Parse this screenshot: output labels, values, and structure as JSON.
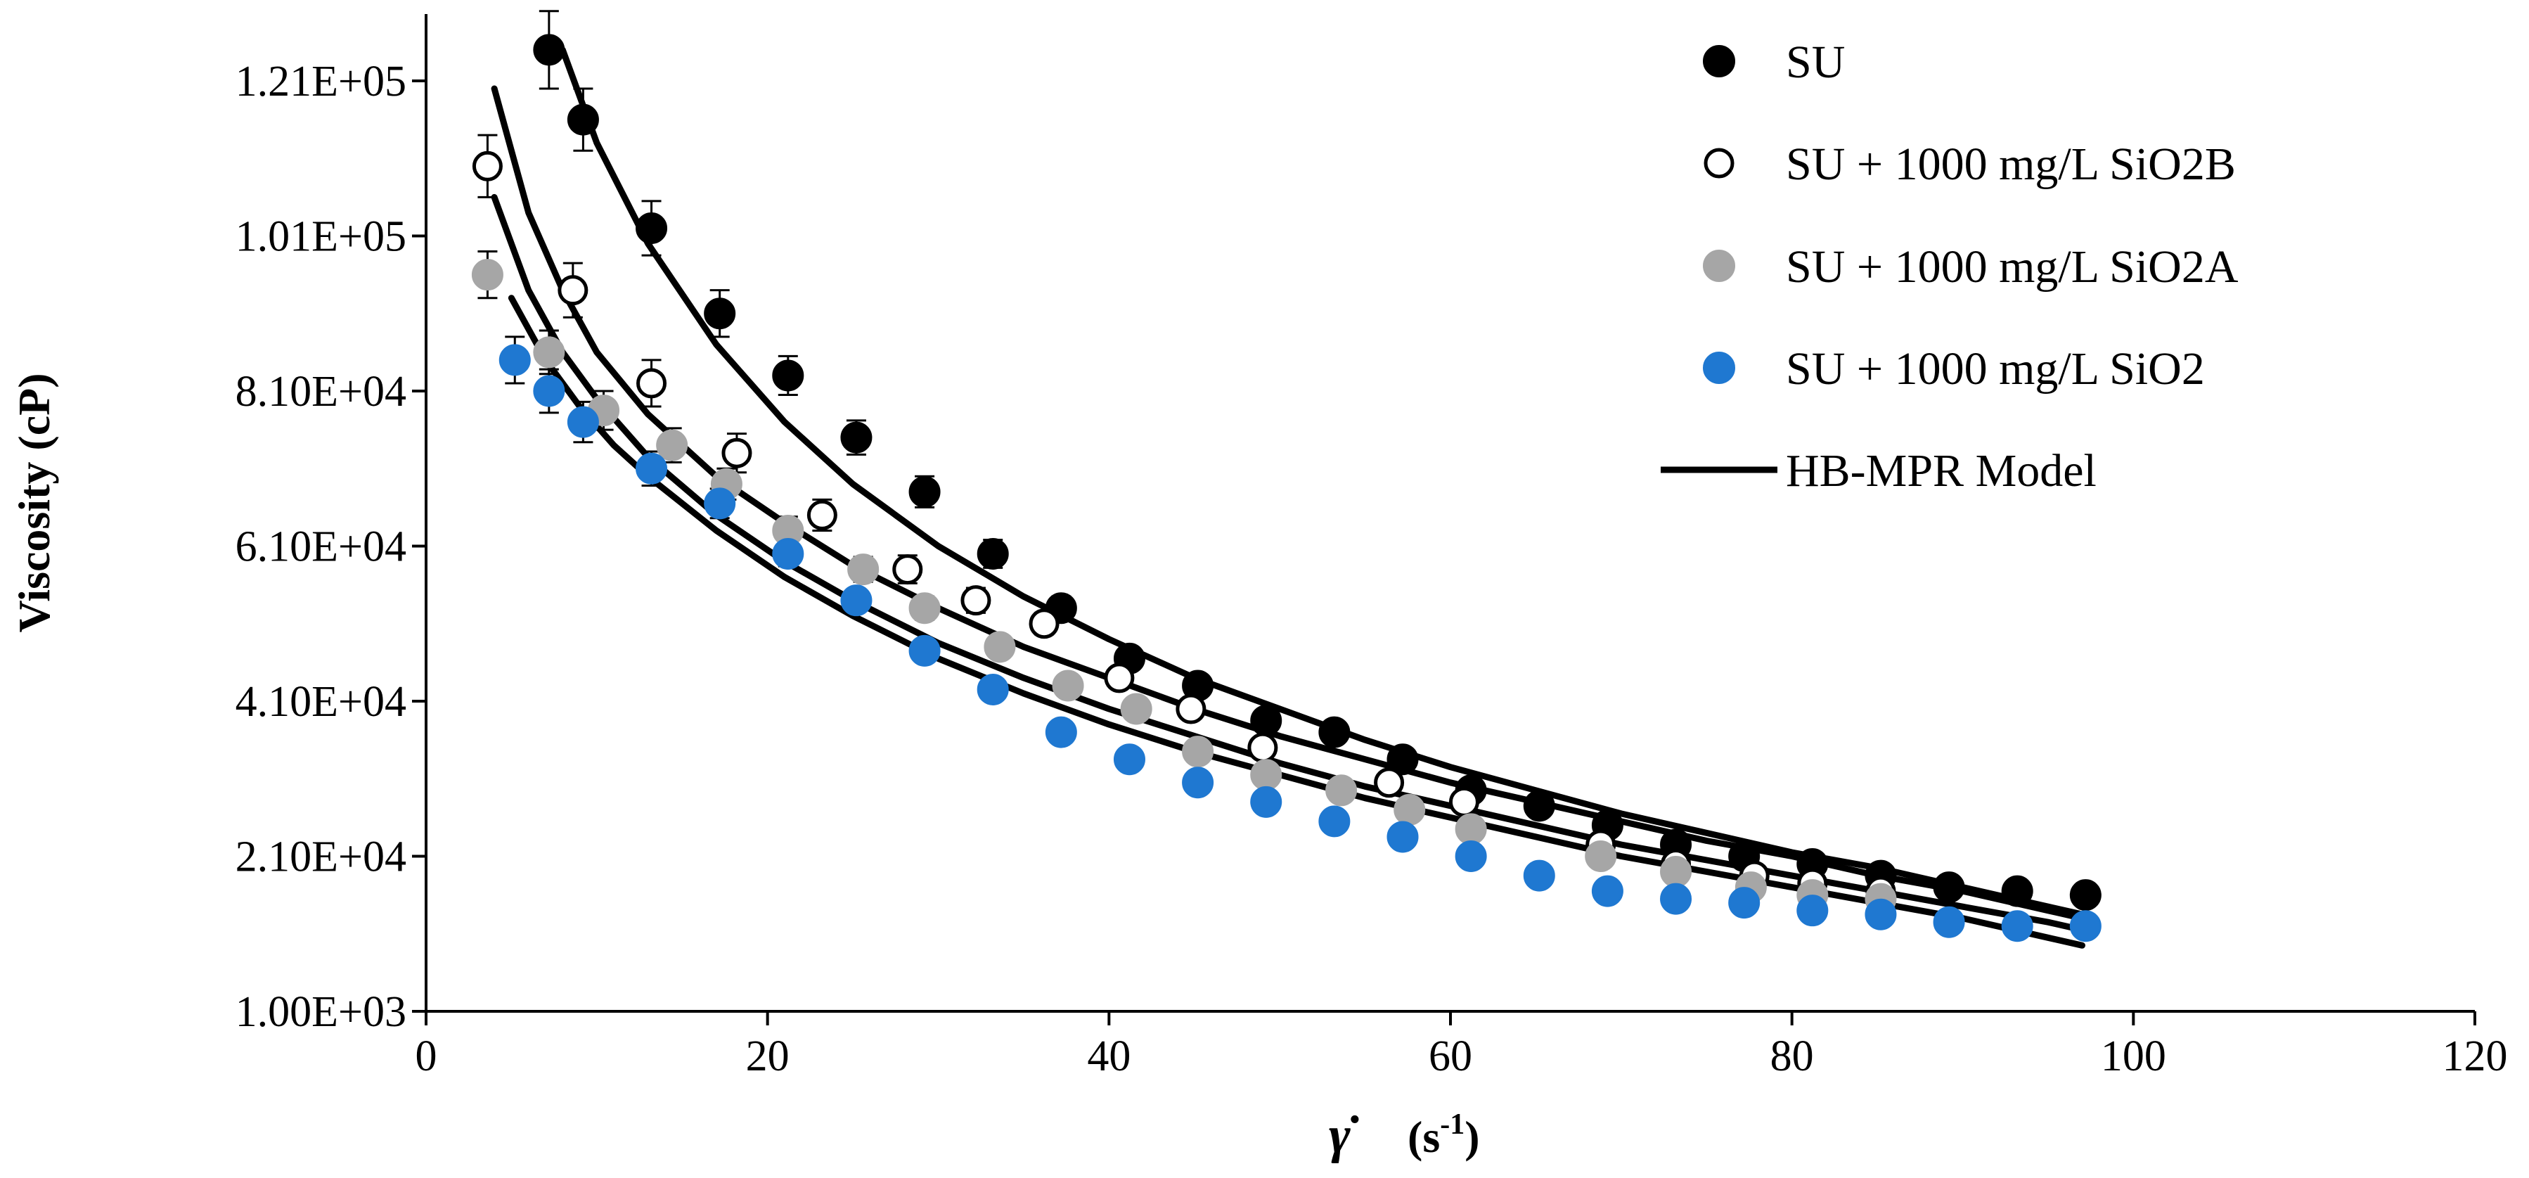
{
  "chart_data": {
    "type": "scatter",
    "title": "",
    "xlabel": "γ̇",
    "xlabel_unit": "(s",
    "xlabel_exp": "-1",
    "xlabel_close": ")",
    "ylabel": "Viscosity (cP)",
    "xlim": [
      0,
      120
    ],
    "ylim": [
      1000,
      130000
    ],
    "x_ticks": [
      0,
      20,
      40,
      60,
      80,
      100,
      120
    ],
    "x_tick_labels": [
      "0",
      "20",
      "40",
      "60",
      "80",
      "100",
      "120"
    ],
    "y_ticks": [
      1000,
      21000,
      41000,
      61000,
      81000,
      101000,
      121000
    ],
    "y_tick_labels": [
      "1.00E+03",
      "2.10E+04",
      "4.10E+04",
      "6.10E+04",
      "8.10E+04",
      "1.01E+05",
      "1.21E+05"
    ],
    "grid": false,
    "legend_position": "top-right",
    "series": [
      {
        "name": "SU",
        "marker": "filled",
        "color": "#000000",
        "edge_color": "#000000",
        "x": [
          7.2,
          9.2,
          13.2,
          17.2,
          21.2,
          25.2,
          29.2,
          33.2,
          37.2,
          41.2,
          45.2,
          49.2,
          53.2,
          57.2,
          61.2,
          65.2,
          69.2,
          73.2,
          77.2,
          81.2,
          85.2,
          89.2,
          93.2,
          97.2
        ],
        "y": [
          125000,
          116000,
          102000,
          91000,
          83000,
          75000,
          68000,
          60000,
          53000,
          46500,
          43000,
          38500,
          37000,
          33500,
          29500,
          27500,
          25000,
          22500,
          21000,
          20000,
          18500,
          17000,
          16500,
          16000
        ],
        "error": [
          5000,
          4000,
          3500,
          3000,
          2500,
          2200,
          2000,
          1800,
          1500,
          1200,
          1000,
          900,
          800,
          700,
          600,
          500,
          400,
          400,
          300,
          300,
          300,
          300,
          300,
          300
        ]
      },
      {
        "name": "SU + 1000 mg/L SiO2B",
        "marker": "open",
        "color": "#ffffff",
        "edge_color": "#000000",
        "x": [
          3.6,
          8.6,
          13.2,
          18.2,
          23.2,
          28.2,
          32.2,
          36.2,
          40.6,
          44.8,
          49.0,
          56.4,
          60.8,
          68.8,
          73.2,
          77.8,
          81.2,
          85.2
        ],
        "y": [
          110000,
          94000,
          82000,
          73000,
          65000,
          58000,
          54000,
          51000,
          44000,
          40000,
          35000,
          30500,
          28000,
          22500,
          20000,
          18500,
          17500,
          16500
        ],
        "error": [
          4000,
          3500,
          3000,
          2500,
          2000,
          1800,
          1600,
          1400,
          1200,
          1000,
          900,
          800,
          600,
          500,
          400,
          400,
          300,
          300
        ]
      },
      {
        "name": "SU + 1000 mg/L SiO2A",
        "marker": "filled",
        "color": "#a6a6a6",
        "edge_color": "#a6a6a6",
        "x": [
          3.6,
          7.2,
          10.4,
          14.4,
          17.6,
          21.2,
          25.6,
          29.2,
          33.6,
          37.6,
          41.6,
          45.2,
          49.2,
          53.6,
          57.6,
          61.2,
          68.8,
          73.2,
          77.6,
          81.2,
          85.2
        ],
        "y": [
          96000,
          86000,
          78500,
          74000,
          69000,
          63000,
          58000,
          53000,
          48000,
          43000,
          40000,
          34500,
          31500,
          29500,
          27000,
          24500,
          21000,
          19000,
          17000,
          16000,
          15500
        ],
        "error": [
          3000,
          2800,
          2500,
          2200,
          2000,
          1800,
          1600,
          1500,
          1300,
          1100,
          1000,
          900,
          800,
          700,
          600,
          500,
          400,
          400,
          300,
          300,
          300
        ]
      },
      {
        "name": "SU + 1000 mg/L SiO2",
        "marker": "filled",
        "color": "#1f78d1",
        "edge_color": "#1f78d1",
        "x": [
          5.2,
          7.2,
          9.2,
          13.2,
          17.2,
          21.2,
          25.2,
          29.2,
          33.2,
          37.2,
          41.2,
          45.2,
          49.2,
          53.2,
          57.2,
          61.2,
          65.2,
          69.2,
          73.2,
          77.2,
          81.2,
          85.2,
          89.2,
          93.2,
          97.2
        ],
        "y": [
          85000,
          81000,
          77000,
          71000,
          66500,
          60000,
          54000,
          47500,
          42500,
          37000,
          33500,
          30500,
          28000,
          25500,
          23500,
          21000,
          18500,
          16500,
          15500,
          15000,
          14000,
          13500,
          12500,
          12000,
          12000
        ],
        "error": [
          3000,
          2800,
          2600,
          2200,
          1900,
          1600,
          1400,
          1200,
          1000,
          900,
          800,
          700,
          600,
          500,
          400,
          400,
          300,
          300,
          300,
          300,
          300,
          300,
          300,
          300,
          300
        ]
      }
    ],
    "model": {
      "name": "HB-MPR Model",
      "curves": [
        {
          "for": "SU",
          "x": [
            8,
            10,
            13,
            17,
            21,
            25,
            30,
            35,
            40,
            45,
            50,
            55,
            60,
            65,
            70,
            75,
            80,
            85,
            90,
            95,
            97
          ],
          "y": [
            125000,
            113000,
            100000,
            87000,
            77000,
            69000,
            61000,
            54500,
            49000,
            44000,
            40000,
            36000,
            32500,
            29500,
            26500,
            24000,
            21500,
            19500,
            17000,
            14500,
            13500
          ]
        },
        {
          "for": "SU + 1000 mg/L SiO2B",
          "x": [
            4,
            6,
            8,
            10,
            13,
            17,
            21,
            25,
            30,
            35,
            40,
            45,
            50,
            55,
            60,
            65,
            70,
            75,
            80,
            85,
            90,
            95,
            97
          ],
          "y": [
            120000,
            104000,
            94000,
            86000,
            78000,
            70000,
            64000,
            58500,
            53000,
            48000,
            44000,
            40000,
            36500,
            33500,
            30500,
            28000,
            25500,
            23000,
            21000,
            18500,
            16500,
            14000,
            13000
          ]
        },
        {
          "for": "SU + 1000 mg/L SiO2A",
          "x": [
            4,
            6,
            8,
            10,
            13,
            17,
            21,
            25,
            30,
            35,
            40,
            45,
            50,
            55,
            60,
            65,
            70,
            75,
            80,
            85,
            90,
            95,
            97
          ],
          "y": [
            106000,
            94000,
            86000,
            80000,
            72500,
            65000,
            59000,
            54000,
            48500,
            44000,
            40000,
            36500,
            33000,
            30000,
            27500,
            25000,
            22500,
            20500,
            18500,
            16500,
            14500,
            12500,
            11500
          ]
        },
        {
          "for": "SU + 1000 mg/L SiO2",
          "x": [
            5,
            7,
            9,
            11,
            13,
            17,
            21,
            25,
            30,
            35,
            40,
            45,
            50,
            55,
            60,
            65,
            70,
            75,
            80,
            85,
            90,
            95,
            97
          ],
          "y": [
            93000,
            85000,
            79000,
            74000,
            70000,
            63000,
            57000,
            52000,
            46500,
            42000,
            38000,
            34500,
            31500,
            28500,
            26000,
            23500,
            21000,
            19000,
            17000,
            15000,
            13000,
            10500,
            9500
          ]
        }
      ]
    }
  }
}
